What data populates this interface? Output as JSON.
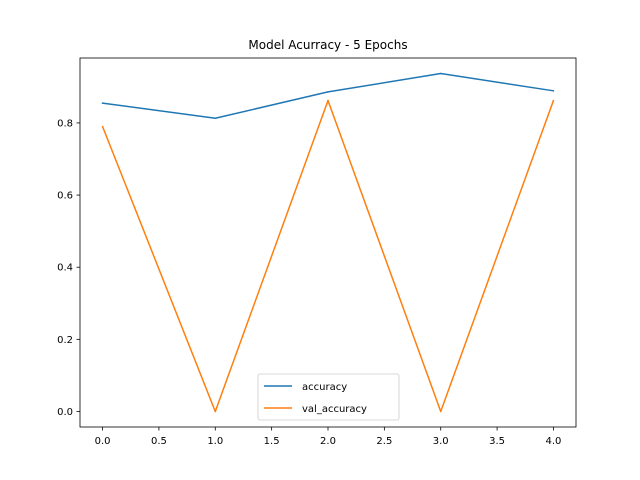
{
  "chart_data": {
    "type": "line",
    "title": "Model Acurracy - 5 Epochs",
    "xlabel": "",
    "ylabel": "",
    "x": [
      0,
      1,
      2,
      3,
      4
    ],
    "xlim": [
      -0.2,
      4.2
    ],
    "ylim": [
      -0.043,
      0.98
    ],
    "x_ticks": [
      "0.0",
      "0.5",
      "1.0",
      "1.5",
      "2.0",
      "2.5",
      "3.0",
      "3.5",
      "4.0"
    ],
    "y_ticks": [
      "0.0",
      "0.2",
      "0.4",
      "0.6",
      "0.8"
    ],
    "grid": false,
    "legend_position": "lower center",
    "series": [
      {
        "name": "accuracy",
        "color": "#1f77b4",
        "values": [
          0.855,
          0.813,
          0.886,
          0.937,
          0.889
        ]
      },
      {
        "name": "val_accuracy",
        "color": "#ff7f0e",
        "values": [
          0.79,
          0.0,
          0.862,
          0.0,
          0.862
        ]
      }
    ]
  }
}
